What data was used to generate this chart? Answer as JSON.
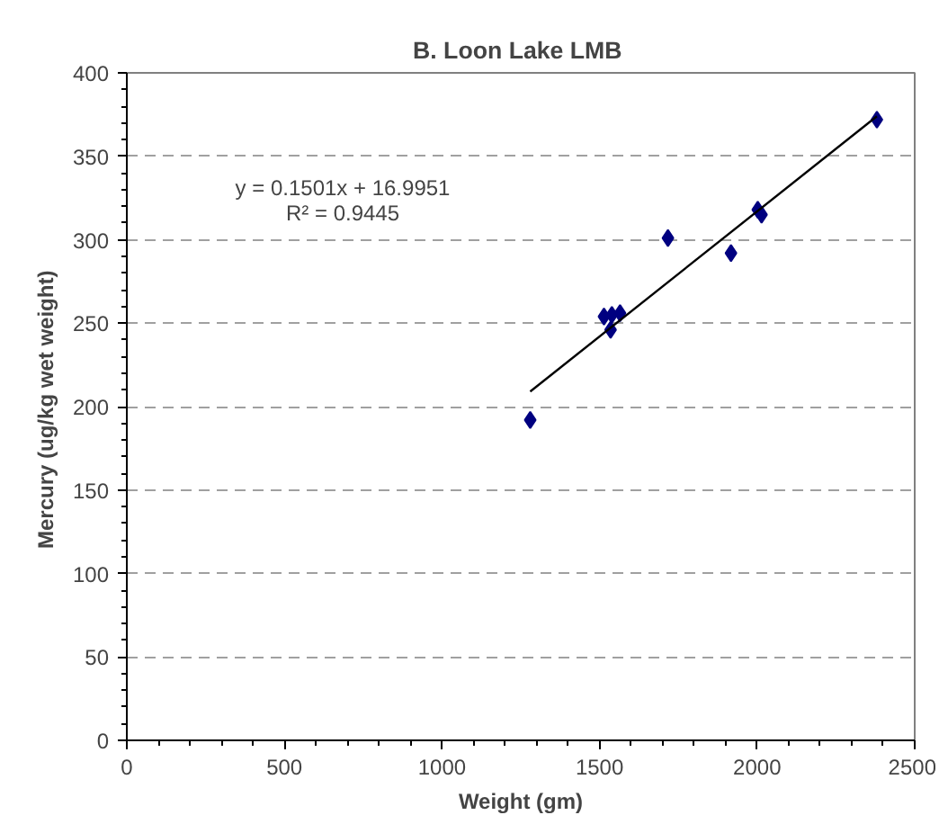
{
  "chart_data": {
    "type": "scatter",
    "title": "B.  Loon Lake LMB",
    "xlabel": "Weight (gm)",
    "ylabel": "Mercury  (ug/kg wet weight)",
    "series": [
      {
        "color": "#000080",
        "marker": "diamond",
        "x": [
          1280,
          1514,
          1539,
          1535,
          1565,
          1717,
          1917,
          2002,
          2014,
          2380
        ],
        "values": [
          192,
          254,
          255,
          246,
          256,
          301,
          292,
          318,
          315,
          372
        ]
      },
      {
        "type": "line",
        "color": "#000000",
        "x": [
          1280,
          2380
        ],
        "values": [
          209,
          374
        ]
      }
    ],
    "annotations": [
      "y = 0.1501x + 16.9951",
      "R² = 0.9445"
    ],
    "xlim": [
      0,
      2500
    ],
    "xticks": [
      0,
      500,
      1000,
      1500,
      2000,
      2500
    ],
    "ylim": [
      0,
      400
    ],
    "yticks": [
      0,
      50,
      100,
      150,
      200,
      250,
      300,
      350,
      400
    ],
    "grid": "y"
  }
}
